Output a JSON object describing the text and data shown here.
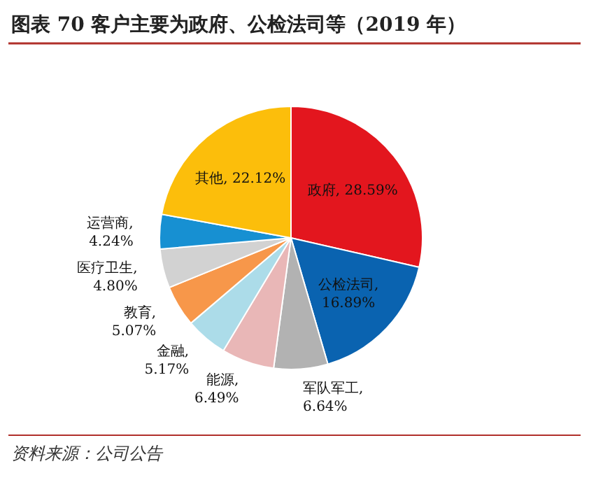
{
  "chart_data": {
    "type": "pie",
    "title": "图表 70   客户主要为政府、公检法司等（2019 年）",
    "categories": [
      "政府",
      "公检法司",
      "军队军工",
      "能源",
      "金融",
      "教育",
      "医疗卫生",
      "运营商",
      "其他"
    ],
    "values": [
      28.59,
      16.89,
      6.64,
      6.49,
      5.17,
      5.07,
      4.8,
      4.24,
      22.12
    ],
    "value_labels": [
      ", 28.59%",
      ", 16.89%",
      ", 6.64%",
      ", 6.49%",
      ", 5.17%",
      ", 5.07%",
      ", 4.80%",
      ", 4.24%",
      ", 22.12%"
    ],
    "colors": [
      "#e3161e",
      "#0a63b0",
      "#b2b2b2",
      "#e9b7b7",
      "#acdce9",
      "#f7974a",
      "#d2d2d2",
      "#1790d2",
      "#fcbe0b"
    ],
    "annotations": [
      "资料来源：公司公告"
    ]
  }
}
